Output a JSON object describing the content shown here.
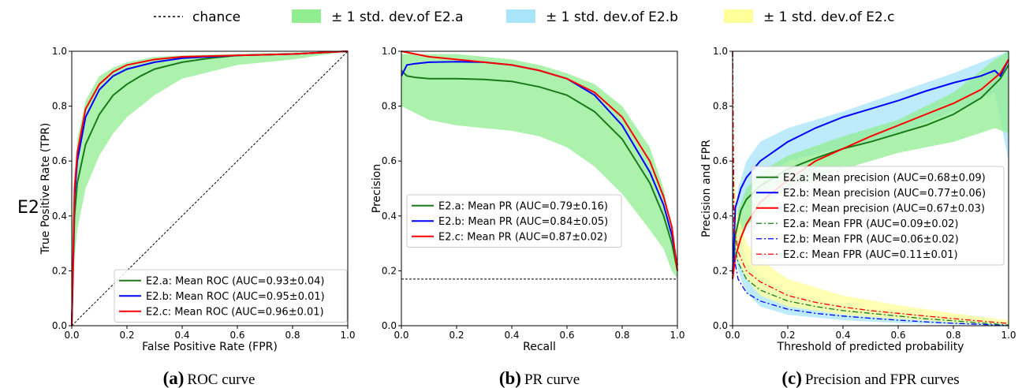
{
  "row_label": "E2",
  "global_legend": [
    {
      "label": "chance",
      "kind": "line",
      "color": "#000000",
      "dash": true
    },
    {
      "label": "± 1 std. dev.of E2.a",
      "kind": "band",
      "color": "#90ee90"
    },
    {
      "label": "± 1 std. dev.of E2.b",
      "kind": "band",
      "color": "#a8e4fa"
    },
    {
      "label": "± 1 std. dev.of E2.c",
      "kind": "band",
      "color": "#ffff99"
    }
  ],
  "colors": {
    "a": "#1b7a1b",
    "b": "#0000ff",
    "c": "#ff0000",
    "band_a": "#90ee90",
    "band_b": "#a8e4fa",
    "band_c": "#ffff99"
  },
  "captions": [
    {
      "letter": "(a)",
      "text": "ROC curve"
    },
    {
      "letter": "(b)",
      "text": "PR curve"
    },
    {
      "letter": "(c)",
      "text": "Precision and FPR curves"
    }
  ],
  "chart_data": [
    {
      "type": "line",
      "title": "",
      "xlabel": "False Positive Rate (FPR)",
      "ylabel": "True Positive Rate (TPR)",
      "xlim": [
        0,
        1
      ],
      "ylim": [
        0,
        1
      ],
      "xticks": [
        "0.0",
        "0.2",
        "0.4",
        "0.6",
        "0.8",
        "1.0"
      ],
      "yticks": [
        "0.0",
        "0.2",
        "0.4",
        "0.6",
        "0.8",
        "1.0"
      ],
      "grid": false,
      "legend_position": "lower-right",
      "reference_line": {
        "label": "chance",
        "points": [
          [
            0,
            0
          ],
          [
            1,
            1
          ]
        ]
      },
      "bands": [
        {
          "series": "E2.a",
          "x": [
            0,
            0.02,
            0.05,
            0.1,
            0.15,
            0.2,
            0.3,
            0.4,
            0.6,
            0.8,
            1.0
          ],
          "upper": [
            0.35,
            0.68,
            0.82,
            0.91,
            0.94,
            0.96,
            0.98,
            0.985,
            0.99,
            0.995,
            1.0
          ],
          "lower": [
            0.15,
            0.35,
            0.5,
            0.62,
            0.7,
            0.76,
            0.84,
            0.9,
            0.95,
            0.97,
            1.0
          ]
        }
      ],
      "series": [
        {
          "name": "E2.a: Mean ROC (AUC=0.93±0.04)",
          "color": "a",
          "dash": "solid",
          "x": [
            0,
            0.01,
            0.02,
            0.05,
            0.1,
            0.15,
            0.2,
            0.25,
            0.3,
            0.4,
            0.5,
            0.6,
            0.8,
            1.0
          ],
          "y": [
            0.0,
            0.4,
            0.52,
            0.66,
            0.77,
            0.84,
            0.88,
            0.91,
            0.935,
            0.96,
            0.975,
            0.985,
            0.99,
            1.0
          ]
        },
        {
          "name": "E2.b: Mean ROC (AUC=0.95±0.01)",
          "color": "b",
          "dash": "solid",
          "x": [
            0,
            0.01,
            0.02,
            0.05,
            0.1,
            0.15,
            0.2,
            0.3,
            0.4,
            0.6,
            0.8,
            1.0
          ],
          "y": [
            0.0,
            0.47,
            0.6,
            0.76,
            0.86,
            0.91,
            0.935,
            0.96,
            0.975,
            0.985,
            0.99,
            1.0
          ]
        },
        {
          "name": "E2.c: Mean ROC (AUC=0.96±0.01)",
          "color": "c",
          "dash": "solid",
          "x": [
            0,
            0.01,
            0.02,
            0.05,
            0.1,
            0.15,
            0.2,
            0.3,
            0.4,
            0.6,
            0.8,
            1.0
          ],
          "y": [
            0.0,
            0.5,
            0.63,
            0.79,
            0.88,
            0.925,
            0.95,
            0.97,
            0.98,
            0.985,
            0.99,
            1.0
          ]
        }
      ]
    },
    {
      "type": "line",
      "title": "",
      "xlabel": "Recall",
      "ylabel": "Precision",
      "xlim": [
        0,
        1
      ],
      "ylim": [
        0,
        1
      ],
      "xticks": [
        "0.0",
        "0.2",
        "0.4",
        "0.6",
        "0.8",
        "1.0"
      ],
      "yticks": [
        "0.0",
        "0.2",
        "0.4",
        "0.6",
        "0.8",
        "1.0"
      ],
      "grid": false,
      "legend_position": "center-left",
      "reference_line": {
        "label": "chance",
        "points": [
          [
            0,
            0.17
          ],
          [
            1,
            0.17
          ]
        ]
      },
      "bands": [
        {
          "series": "E2.a",
          "x": [
            0,
            0.1,
            0.2,
            0.3,
            0.4,
            0.5,
            0.6,
            0.7,
            0.8,
            0.9,
            0.95,
            0.98,
            1.0
          ],
          "upper": [
            0.99,
            0.99,
            0.99,
            0.98,
            0.97,
            0.95,
            0.92,
            0.88,
            0.8,
            0.65,
            0.5,
            0.35,
            0.22
          ],
          "lower": [
            0.8,
            0.75,
            0.73,
            0.72,
            0.71,
            0.69,
            0.65,
            0.58,
            0.48,
            0.35,
            0.28,
            0.2,
            0.17
          ]
        }
      ],
      "series": [
        {
          "name": "E2.a: Mean PR (AUC=0.79±0.16)",
          "color": "a",
          "dash": "solid",
          "x": [
            0,
            0.02,
            0.05,
            0.1,
            0.2,
            0.3,
            0.4,
            0.5,
            0.6,
            0.7,
            0.8,
            0.9,
            0.95,
            0.98,
            1.0
          ],
          "y": [
            0.93,
            0.91,
            0.905,
            0.9,
            0.9,
            0.897,
            0.89,
            0.87,
            0.84,
            0.78,
            0.68,
            0.52,
            0.4,
            0.3,
            0.2
          ]
        },
        {
          "name": "E2.b: Mean PR (AUC=0.84±0.05)",
          "color": "b",
          "dash": "solid",
          "x": [
            0,
            0.02,
            0.05,
            0.1,
            0.2,
            0.3,
            0.4,
            0.5,
            0.6,
            0.7,
            0.8,
            0.9,
            0.95,
            0.98,
            1.0
          ],
          "y": [
            0.91,
            0.95,
            0.955,
            0.96,
            0.962,
            0.96,
            0.95,
            0.93,
            0.9,
            0.84,
            0.73,
            0.56,
            0.44,
            0.33,
            0.22
          ]
        },
        {
          "name": "E2.c: Mean PR (AUC=0.87±0.02)",
          "color": "c",
          "dash": "solid",
          "x": [
            0,
            0.05,
            0.1,
            0.2,
            0.3,
            0.4,
            0.5,
            0.6,
            0.7,
            0.8,
            0.9,
            0.95,
            0.98,
            1.0
          ],
          "y": [
            1.0,
            0.99,
            0.98,
            0.97,
            0.96,
            0.95,
            0.93,
            0.9,
            0.85,
            0.76,
            0.6,
            0.47,
            0.36,
            0.2
          ]
        }
      ]
    },
    {
      "type": "line",
      "title": "",
      "xlabel": "Threshold of predicted probability",
      "ylabel": "Precision and FPR",
      "xlim": [
        0,
        1
      ],
      "ylim": [
        0,
        1
      ],
      "xticks": [
        "0.0",
        "0.2",
        "0.4",
        "0.6",
        "0.8",
        "1.0"
      ],
      "yticks": [
        "0.0",
        "0.2",
        "0.4",
        "0.6",
        "0.8",
        "1.0"
      ],
      "grid": false,
      "legend_position": "center",
      "bands": [
        {
          "series": "E2.b",
          "x": [
            0,
            0.02,
            0.05,
            0.1,
            0.2,
            0.4,
            0.6,
            0.8,
            0.95,
            1.0
          ],
          "upper": [
            0.3,
            0.5,
            0.6,
            0.67,
            0.72,
            0.78,
            0.85,
            0.92,
            0.98,
            1.0
          ],
          "lower": [
            0.2,
            0.38,
            0.46,
            0.53,
            0.6,
            0.65,
            0.7,
            0.78,
            0.85,
            0.6
          ]
        },
        {
          "series": "E2.a",
          "x": [
            0,
            0.02,
            0.05,
            0.1,
            0.2,
            0.4,
            0.6,
            0.8,
            0.95,
            1.0
          ],
          "upper": [
            0.3,
            0.42,
            0.5,
            0.56,
            0.62,
            0.69,
            0.75,
            0.85,
            0.97,
            1.0
          ],
          "lower": [
            0.15,
            0.3,
            0.36,
            0.42,
            0.5,
            0.57,
            0.63,
            0.67,
            0.72,
            0.7
          ]
        },
        {
          "series": "E2.b",
          "x": [
            0,
            0.02,
            0.05,
            0.1,
            0.2,
            0.4,
            0.6,
            0.8,
            1.0
          ],
          "upper": [
            0.55,
            0.35,
            0.24,
            0.18,
            0.12,
            0.07,
            0.045,
            0.025,
            0.01
          ],
          "lower": [
            0.3,
            0.2,
            0.12,
            0.07,
            0.04,
            0.02,
            0.01,
            0.005,
            0.0
          ]
        },
        {
          "series": "E2.c",
          "x": [
            0,
            0.02,
            0.05,
            0.1,
            0.2,
            0.4,
            0.6,
            0.8,
            1.0
          ],
          "upper": [
            0.6,
            0.4,
            0.3,
            0.24,
            0.17,
            0.11,
            0.075,
            0.045,
            0.02
          ],
          "lower": [
            0.35,
            0.24,
            0.17,
            0.11,
            0.07,
            0.04,
            0.025,
            0.012,
            0.004
          ]
        }
      ],
      "series": [
        {
          "name": "E2.a: Mean precision (AUC=0.68±0.09)",
          "color": "a",
          "dash": "solid",
          "x": [
            0,
            0.01,
            0.03,
            0.05,
            0.1,
            0.2,
            0.3,
            0.4,
            0.5,
            0.6,
            0.7,
            0.8,
            0.9,
            0.97,
            1.0
          ],
          "y": [
            0.17,
            0.33,
            0.42,
            0.46,
            0.51,
            0.57,
            0.61,
            0.645,
            0.67,
            0.7,
            0.73,
            0.77,
            0.83,
            0.9,
            0.95
          ]
        },
        {
          "name": "E2.b: Mean precision (AUC=0.77±0.06)",
          "color": "b",
          "dash": "solid",
          "x": [
            0,
            0.01,
            0.03,
            0.05,
            0.1,
            0.2,
            0.3,
            0.4,
            0.5,
            0.6,
            0.7,
            0.8,
            0.9,
            0.95,
            0.97,
            0.99,
            1.0
          ],
          "y": [
            0.19,
            0.43,
            0.5,
            0.54,
            0.6,
            0.67,
            0.72,
            0.76,
            0.79,
            0.82,
            0.855,
            0.885,
            0.91,
            0.93,
            0.91,
            0.95,
            0.97
          ]
        },
        {
          "name": "E2.c: Mean precision (AUC=0.67±0.03)",
          "color": "c",
          "dash": "solid",
          "x": [
            0,
            0.01,
            0.03,
            0.05,
            0.1,
            0.2,
            0.3,
            0.4,
            0.5,
            0.6,
            0.7,
            0.8,
            0.9,
            0.97,
            1.0
          ],
          "y": [
            0.17,
            0.25,
            0.32,
            0.37,
            0.45,
            0.53,
            0.6,
            0.645,
            0.69,
            0.73,
            0.77,
            0.81,
            0.86,
            0.92,
            0.97
          ]
        },
        {
          "name": "E2.a: Mean FPR (AUC=0.09±0.02)",
          "color": "a",
          "dash": "dashdot",
          "x": [
            0,
            0.005,
            0.02,
            0.05,
            0.1,
            0.2,
            0.3,
            0.4,
            0.5,
            0.6,
            0.7,
            0.8,
            0.9,
            1.0
          ],
          "y": [
            1.0,
            0.3,
            0.23,
            0.17,
            0.13,
            0.09,
            0.07,
            0.055,
            0.045,
            0.035,
            0.025,
            0.018,
            0.01,
            0.002
          ]
        },
        {
          "name": "E2.b: Mean FPR (AUC=0.06±0.02)",
          "color": "b",
          "dash": "dashdot",
          "x": [
            0,
            0.005,
            0.02,
            0.05,
            0.1,
            0.2,
            0.3,
            0.4,
            0.5,
            0.6,
            0.7,
            0.8,
            0.9,
            1.0
          ],
          "y": [
            1.0,
            0.25,
            0.17,
            0.12,
            0.09,
            0.06,
            0.045,
            0.035,
            0.027,
            0.02,
            0.014,
            0.009,
            0.005,
            0.0
          ]
        },
        {
          "name": "E2.c: Mean FPR (AUC=0.11±0.01)",
          "color": "c",
          "dash": "dashdot",
          "x": [
            0,
            0.005,
            0.02,
            0.05,
            0.1,
            0.2,
            0.3,
            0.4,
            0.5,
            0.6,
            0.7,
            0.8,
            0.9,
            1.0
          ],
          "y": [
            1.0,
            0.36,
            0.27,
            0.2,
            0.16,
            0.11,
            0.085,
            0.068,
            0.055,
            0.045,
            0.035,
            0.026,
            0.017,
            0.008
          ]
        }
      ]
    }
  ]
}
